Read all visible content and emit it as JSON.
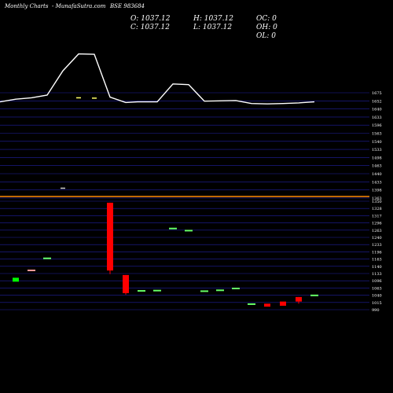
{
  "header": {
    "left": "Monthly Charts",
    "center": "- MunafaSutra.com",
    "right": "BSE 983684"
  },
  "ohlc": {
    "open": "O: 1037.12",
    "high": "H: 1037.12",
    "oc": "OC: 0",
    "close": "C: 1037.12",
    "low": "L: 1037.12",
    "oh": "OH: 0",
    "ol": "OL: 0"
  },
  "colors": {
    "background": "#000000",
    "grid": "#2020a0",
    "divider": "#ff8c00",
    "line": "#ffffff",
    "bull": "#00ff00",
    "bear": "#ff0000",
    "marker_high": "#ffff66",
    "marker_mid": "#cccccc",
    "marker_neutral": "#66ff66"
  },
  "chart_data": [
    {
      "type": "line",
      "title": "",
      "y_ticks": [
        "1675",
        "1652",
        "1640",
        "1633",
        "1596",
        "1563",
        "1540",
        "1533",
        "1498",
        "1463",
        "1440",
        "1433",
        "1398",
        "1363"
      ],
      "series": [
        {
          "values": [
            1648,
            1656,
            1660,
            1668,
            1740,
            1790,
            1789,
            1662,
            1646,
            1648,
            1648,
            1701,
            1699,
            1650,
            1651,
            1652,
            1643,
            1642,
            1643,
            1645,
            1648
          ]
        }
      ],
      "markers": [
        {
          "index": 5,
          "value": 1660,
          "color": "#ffff66"
        },
        {
          "index": 6,
          "value": 1659,
          "color": "#ffff66"
        },
        {
          "index": 4,
          "value": 1392,
          "color": "#cccccc"
        }
      ]
    },
    {
      "type": "candlestick",
      "title": "",
      "y_ticks": [
        "1350",
        "1328",
        "1317",
        "1296",
        "1263",
        "1240",
        "1233",
        "1196",
        "1163",
        "1140",
        "1133",
        "1096",
        "1063",
        "1040",
        "1015",
        "990"
      ],
      "candles": [
        {
          "index": 0,
          "open": 1096,
          "close": 1083,
          "high": 1096,
          "low": 1083,
          "color": "#00ff00"
        },
        {
          "index": 1,
          "open": 1123,
          "close": 1121,
          "high": 1123,
          "low": 1121,
          "color": "#ff9999"
        },
        {
          "index": 2,
          "open": 1163,
          "close": 1161,
          "high": 1163,
          "low": 1161,
          "color": "#66ff66"
        },
        {
          "index": 6,
          "open": 1345,
          "close": 1120,
          "high": 1345,
          "low": 1108,
          "color": "#ff0000"
        },
        {
          "index": 7,
          "open": 1105,
          "close": 1045,
          "high": 1105,
          "low": 1040,
          "color": "#ff0000"
        },
        {
          "index": 8,
          "open": 1055,
          "close": 1053,
          "high": 1055,
          "low": 1053,
          "color": "#66ff66"
        },
        {
          "index": 9,
          "open": 1056,
          "close": 1054,
          "high": 1056,
          "low": 1054,
          "color": "#66ff66"
        },
        {
          "index": 10,
          "open": 1262,
          "close": 1260,
          "high": 1262,
          "low": 1260,
          "color": "#66ff66"
        },
        {
          "index": 11,
          "open": 1255,
          "close": 1253,
          "high": 1255,
          "low": 1253,
          "color": "#66ff66"
        },
        {
          "index": 12,
          "open": 1054,
          "close": 1052,
          "high": 1054,
          "low": 1052,
          "color": "#66ff66"
        },
        {
          "index": 13,
          "open": 1057,
          "close": 1055,
          "high": 1057,
          "low": 1055,
          "color": "#66ff66"
        },
        {
          "index": 14,
          "open": 1063,
          "close": 1061,
          "high": 1063,
          "low": 1061,
          "color": "#66ff66"
        },
        {
          "index": 15,
          "open": 1011,
          "close": 1009,
          "high": 1011,
          "low": 1009,
          "color": "#66ff66"
        },
        {
          "index": 16,
          "open": 1010,
          "close": 1000,
          "high": 1010,
          "low": 1000,
          "color": "#ff0000"
        },
        {
          "index": 17,
          "open": 1017,
          "close": 1003,
          "high": 1017,
          "low": 1003,
          "color": "#ff0000"
        },
        {
          "index": 18,
          "open": 1032,
          "close": 1017,
          "high": 1032,
          "low": 1010,
          "color": "#ff0000"
        },
        {
          "index": 19,
          "open": 1040,
          "close": 1038,
          "high": 1040,
          "low": 1038,
          "color": "#66ff66"
        }
      ]
    }
  ]
}
